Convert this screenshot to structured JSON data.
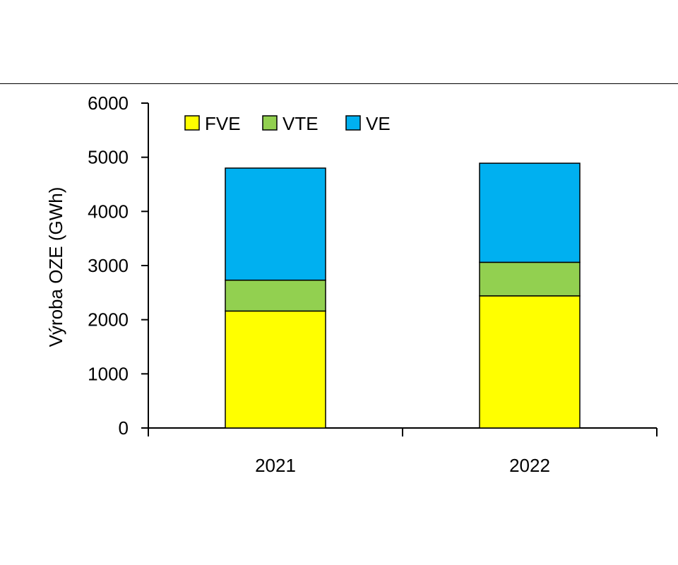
{
  "chart_data": {
    "type": "bar",
    "stacked": true,
    "title": "",
    "xlabel": "",
    "ylabel": "Výroba OZE (GWh)",
    "ylim": [
      0,
      6000
    ],
    "yticks": [
      "0",
      "1000",
      "2000",
      "3000",
      "4000",
      "5000",
      "6000"
    ],
    "categories": [
      "2021",
      "2022"
    ],
    "series": [
      {
        "name": "FVE",
        "values": [
          2160,
          2440
        ],
        "color": "#ffff00"
      },
      {
        "name": "VTE",
        "values": [
          570,
          620
        ],
        "color": "#92d050"
      },
      {
        "name": "VE",
        "values": [
          2070,
          1830
        ],
        "color": "#00b0f0"
      }
    ],
    "legend_position": "top-left",
    "grid": false
  }
}
